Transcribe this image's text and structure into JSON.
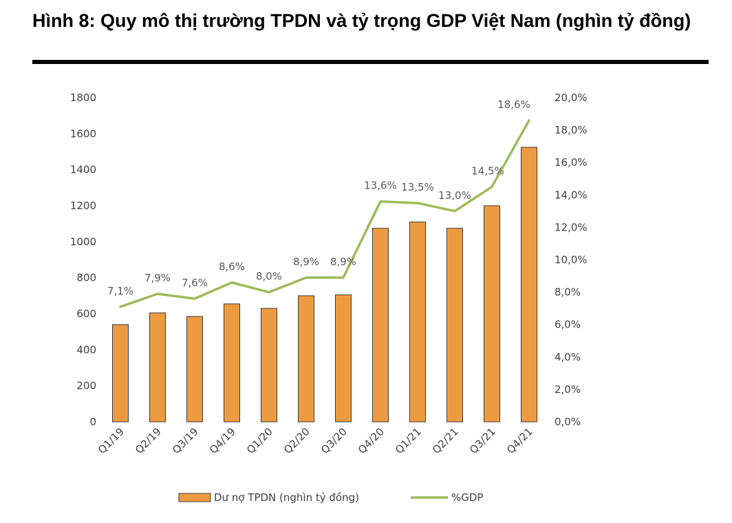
{
  "figure": {
    "title": "Hình 8: Quy mô thị trường TPDN và tỷ trọng GDP Việt Nam (nghìn tỷ đồng)"
  },
  "colors": {
    "bar_fill": "#ED9B40",
    "bar_stroke": "#3A3A3A",
    "line": "#9BBB59",
    "label": "#595959",
    "axis_text": "#404040"
  },
  "chart_data": {
    "type": "bar",
    "title": "",
    "categories": [
      "Q1/19",
      "Q2/19",
      "Q3/19",
      "Q4/19",
      "Q1/20",
      "Q2/20",
      "Q3/20",
      "Q4/20",
      "Q1/21",
      "Q2/21",
      "Q3/21",
      "Q4/21"
    ],
    "series": [
      {
        "name": "Dư nợ TPDN (nghìn tỷ đồng)",
        "type": "bar",
        "axis": "left",
        "values": [
          540,
          605,
          585,
          655,
          630,
          700,
          705,
          1075,
          1110,
          1075,
          1200,
          1525
        ]
      },
      {
        "name": "%GDP",
        "type": "line",
        "axis": "right",
        "values": [
          7.1,
          7.9,
          7.6,
          8.6,
          8.0,
          8.9,
          8.9,
          13.6,
          13.5,
          13.0,
          14.5,
          18.6
        ],
        "labels": [
          "7,1%",
          "7,9%",
          "7,6%",
          "8,6%",
          "8,0%",
          "8,9%",
          "8,9%",
          "13,6%",
          "13,5%",
          "13,0%",
          "14,5%",
          "18,6%"
        ]
      }
    ],
    "y_left": {
      "min": 0,
      "max": 1800,
      "ticks": [
        "0",
        "200",
        "400",
        "600",
        "800",
        "1000",
        "1200",
        "1400",
        "1600",
        "1800"
      ]
    },
    "y_right": {
      "min": 0,
      "max": 20,
      "ticks": [
        "0,0%",
        "2,0%",
        "4,0%",
        "6,0%",
        "8,0%",
        "10,0%",
        "12,0%",
        "14,0%",
        "16,0%",
        "18,0%",
        "20,0%"
      ]
    },
    "xlabel": "",
    "ylabel": "",
    "grid": false,
    "legend": {
      "position": "bottom",
      "items": [
        "Dư nợ TPDN (nghìn tỷ đồng)",
        "%GDP"
      ]
    }
  }
}
